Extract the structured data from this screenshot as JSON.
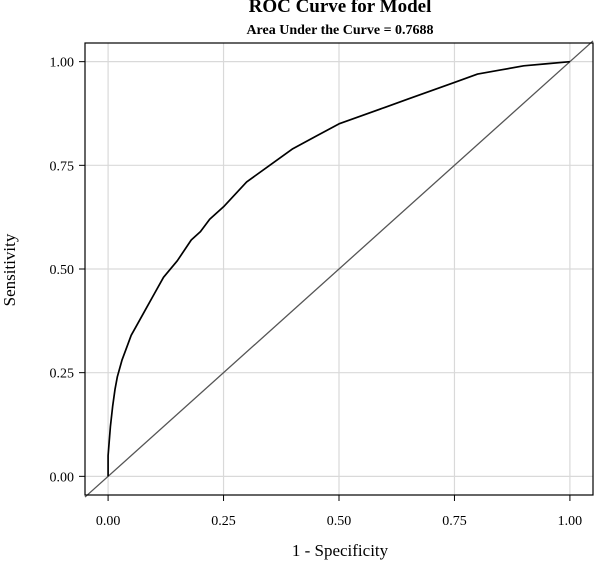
{
  "chart_data": {
    "type": "line",
    "title": "ROC Curve for Model",
    "subtitle": "Area Under the Curve = 0.7688",
    "xlabel": "1 - Specificity",
    "ylabel": "Sensitivity",
    "xlim": [
      -0.05,
      1.05
    ],
    "ylim": [
      -0.045,
      1.045
    ],
    "xticks": [
      "0.00",
      "0.25",
      "0.50",
      "0.75",
      "1.00"
    ],
    "yticks": [
      "0.00",
      "0.25",
      "0.50",
      "0.75",
      "1.00"
    ],
    "grid": true,
    "colors": {
      "curve": "#000000",
      "reference": "#555555",
      "grid": "#d9d9d9"
    },
    "series": [
      {
        "x": [
          0.0,
          0.0,
          0.005,
          0.01,
          0.015,
          0.02,
          0.03,
          0.04,
          0.05,
          0.06,
          0.08,
          0.1,
          0.12,
          0.15,
          0.18,
          0.2,
          0.22,
          0.25,
          0.3,
          0.35,
          0.4,
          0.45,
          0.5,
          0.55,
          0.6,
          0.65,
          0.7,
          0.75,
          0.8,
          0.85,
          0.9,
          0.95,
          1.0
        ],
        "y": [
          0.0,
          0.05,
          0.12,
          0.17,
          0.21,
          0.24,
          0.28,
          0.31,
          0.34,
          0.36,
          0.4,
          0.44,
          0.48,
          0.52,
          0.57,
          0.59,
          0.62,
          0.65,
          0.71,
          0.75,
          0.79,
          0.82,
          0.85,
          0.87,
          0.89,
          0.91,
          0.93,
          0.95,
          0.97,
          0.98,
          0.99,
          0.995,
          1.0
        ]
      },
      {
        "x": [
          -0.05,
          1.05
        ],
        "y": [
          -0.05,
          1.05
        ]
      }
    ]
  }
}
